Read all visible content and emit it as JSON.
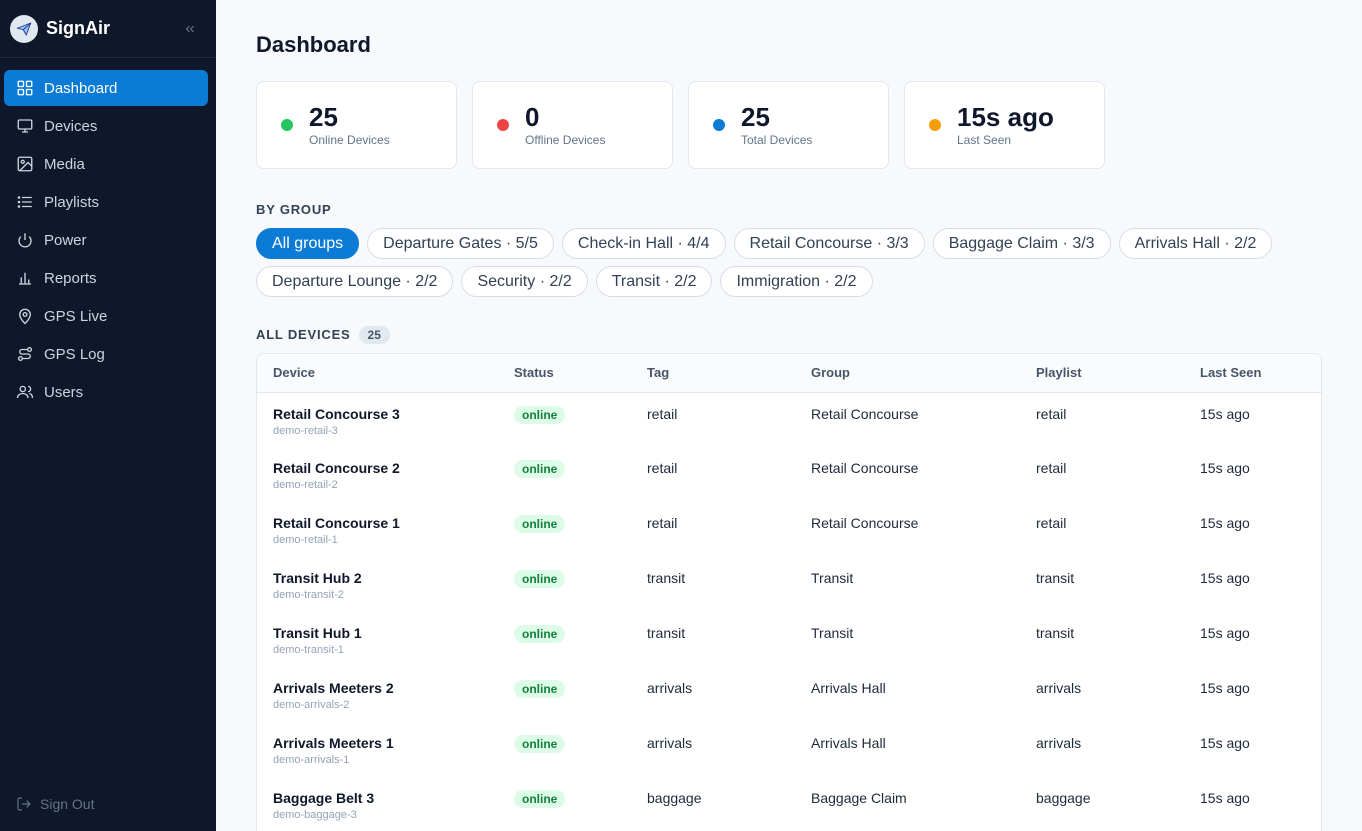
{
  "brand": {
    "name": "SignAir"
  },
  "sidebar": {
    "items": [
      {
        "label": "Dashboard",
        "icon": "grid-icon",
        "active": true
      },
      {
        "label": "Devices",
        "icon": "monitor-icon"
      },
      {
        "label": "Media",
        "icon": "image-icon"
      },
      {
        "label": "Playlists",
        "icon": "list-icon"
      },
      {
        "label": "Power",
        "icon": "power-icon"
      },
      {
        "label": "Reports",
        "icon": "bar-chart-icon"
      },
      {
        "label": "GPS Live",
        "icon": "map-pin-icon"
      },
      {
        "label": "GPS Log",
        "icon": "route-icon"
      },
      {
        "label": "Users",
        "icon": "users-icon"
      }
    ],
    "sign_out": "Sign Out"
  },
  "page": {
    "title": "Dashboard"
  },
  "stats": [
    {
      "value": "25",
      "label": "Online Devices",
      "color": "#22c55e"
    },
    {
      "value": "0",
      "label": "Offline Devices",
      "color": "#ef4444"
    },
    {
      "value": "25",
      "label": "Total Devices",
      "color": "#0b7bd6"
    },
    {
      "value": "15s ago",
      "label": "Last Seen",
      "color": "#f59e0b"
    }
  ],
  "by_group": {
    "label": "BY GROUP",
    "chips": [
      "All groups",
      "Departure Gates · 5/5",
      "Check-in Hall · 4/4",
      "Retail Concourse · 3/3",
      "Baggage Claim · 3/3",
      "Arrivals Hall · 2/2",
      "Departure Lounge · 2/2",
      "Security · 2/2",
      "Transit · 2/2",
      "Immigration · 2/2"
    ],
    "selected": "All groups"
  },
  "devices": {
    "label": "ALL DEVICES",
    "count": "25",
    "columns": [
      "Device",
      "Status",
      "Tag",
      "Group",
      "Playlist",
      "Last Seen"
    ],
    "rows": [
      {
        "name": "Retail Concourse 3",
        "id": "demo-retail-3",
        "status": "online",
        "tag": "retail",
        "group": "Retail Concourse",
        "playlist": "retail",
        "last_seen": "15s ago"
      },
      {
        "name": "Retail Concourse 2",
        "id": "demo-retail-2",
        "status": "online",
        "tag": "retail",
        "group": "Retail Concourse",
        "playlist": "retail",
        "last_seen": "15s ago"
      },
      {
        "name": "Retail Concourse 1",
        "id": "demo-retail-1",
        "status": "online",
        "tag": "retail",
        "group": "Retail Concourse",
        "playlist": "retail",
        "last_seen": "15s ago"
      },
      {
        "name": "Transit Hub 2",
        "id": "demo-transit-2",
        "status": "online",
        "tag": "transit",
        "group": "Transit",
        "playlist": "transit",
        "last_seen": "15s ago"
      },
      {
        "name": "Transit Hub 1",
        "id": "demo-transit-1",
        "status": "online",
        "tag": "transit",
        "group": "Transit",
        "playlist": "transit",
        "last_seen": "15s ago"
      },
      {
        "name": "Arrivals Meeters 2",
        "id": "demo-arrivals-2",
        "status": "online",
        "tag": "arrivals",
        "group": "Arrivals Hall",
        "playlist": "arrivals",
        "last_seen": "15s ago"
      },
      {
        "name": "Arrivals Meeters 1",
        "id": "demo-arrivals-1",
        "status": "online",
        "tag": "arrivals",
        "group": "Arrivals Hall",
        "playlist": "arrivals",
        "last_seen": "15s ago"
      },
      {
        "name": "Baggage Belt 3",
        "id": "demo-baggage-3",
        "status": "online",
        "tag": "baggage",
        "group": "Baggage Claim",
        "playlist": "baggage",
        "last_seen": "15s ago"
      }
    ]
  }
}
